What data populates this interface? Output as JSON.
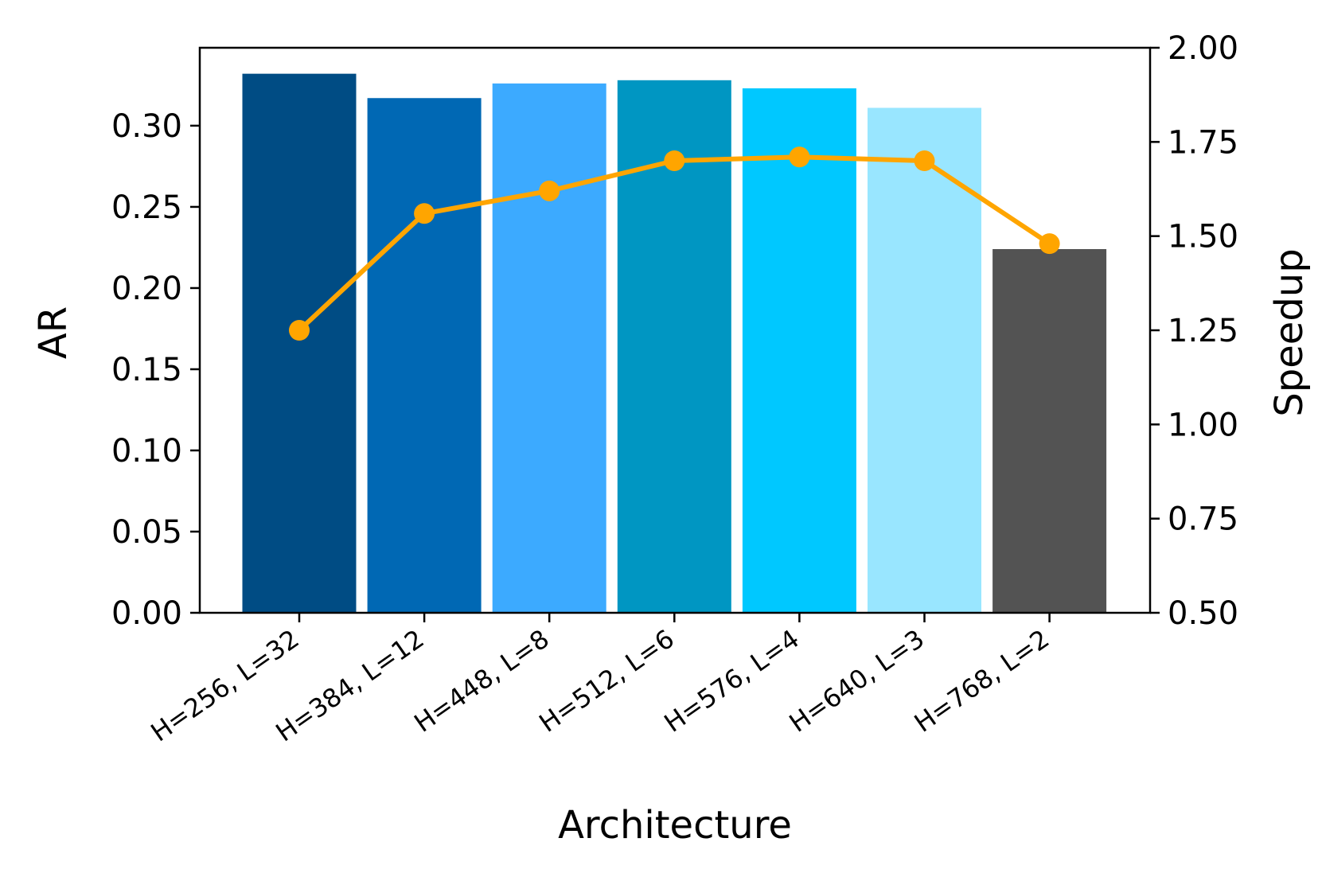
{
  "chart_data": {
    "type": "bar",
    "xlabel": "Architecture",
    "ylabel": "AR",
    "y2label": "Speedup",
    "categories": [
      "H=256, L=32",
      "H=384, L=12",
      "H=448, L=8",
      "H=512, L=6",
      "H=576, L=4",
      "H=640, L=3",
      "H=768, L=2"
    ],
    "ylim": [
      0,
      0.348
    ],
    "y2lim": [
      0.5,
      2.0
    ],
    "yticks": [
      "0.00",
      "0.05",
      "0.10",
      "0.15",
      "0.20",
      "0.25",
      "0.30"
    ],
    "y2ticks": [
      "0.50",
      "0.75",
      "1.00",
      "1.25",
      "1.50",
      "1.75",
      "2.00"
    ],
    "grid": false,
    "series": [
      {
        "kind": "bar",
        "axis": "left",
        "values": [
          0.332,
          0.317,
          0.326,
          0.328,
          0.323,
          0.311,
          0.224
        ],
        "colors": [
          "#004c84",
          "#0068b4",
          "#3caaff",
          "#0096c2",
          "#00c8ff",
          "#99e6ff",
          "#535353"
        ]
      },
      {
        "kind": "line",
        "axis": "right",
        "color": "#ffa500",
        "values": [
          1.25,
          1.56,
          1.62,
          1.7,
          1.71,
          1.7,
          1.48
        ]
      }
    ]
  }
}
